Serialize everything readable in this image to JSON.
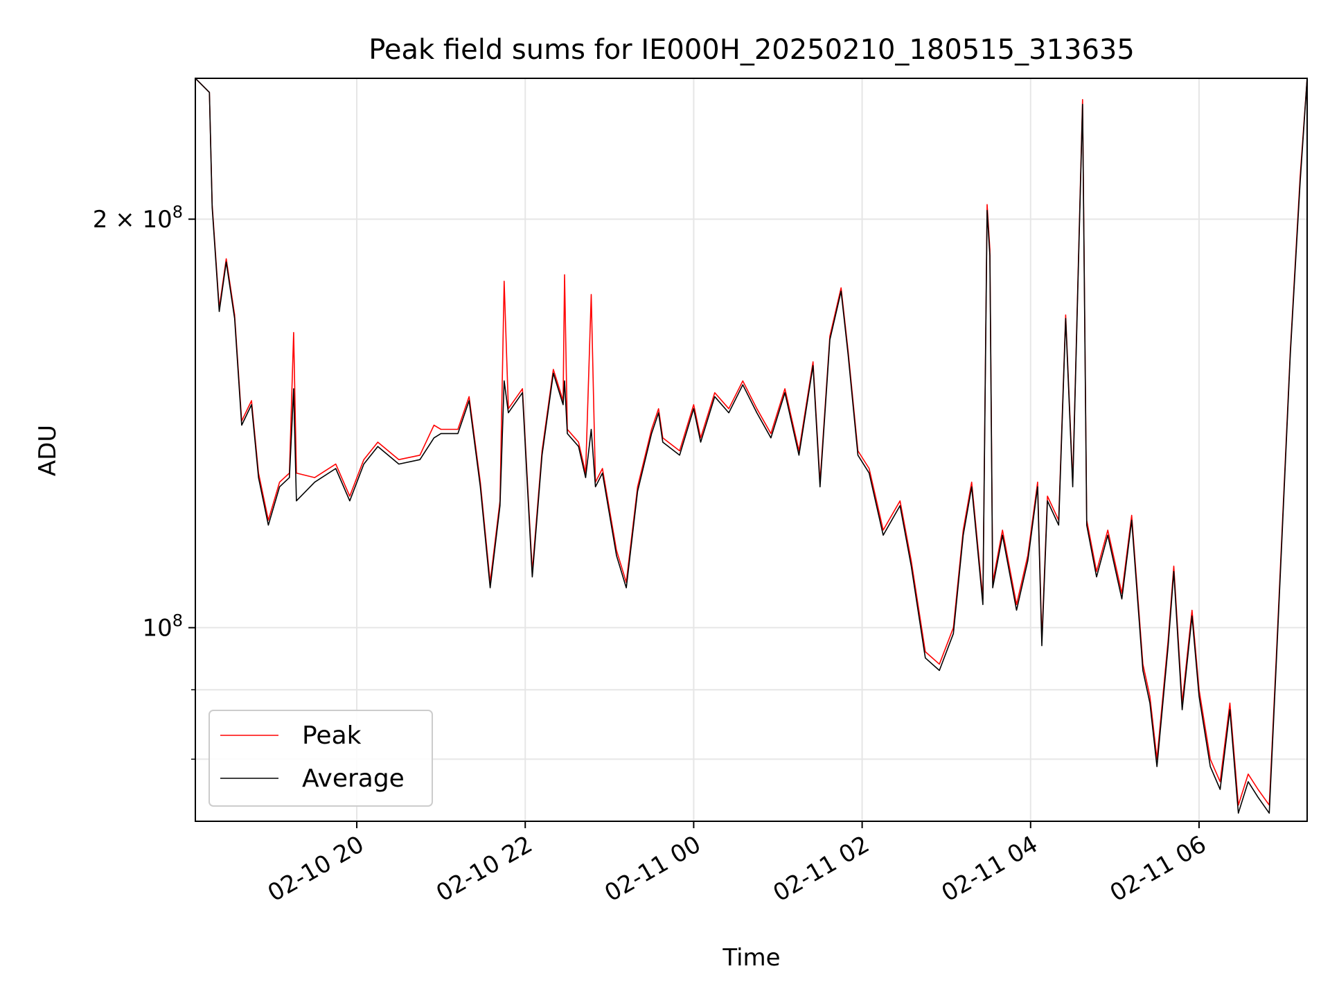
{
  "chart_data": {
    "type": "line",
    "title": "Peak field sums for IE000H_20250210_180515_313635",
    "xlabel": "Time",
    "ylabel": "ADU",
    "x_range_hours": [
      "02-10 18:05",
      "02-11 07:17"
    ],
    "ylim": [
      72000000,
      254000000
    ],
    "yscale": "log",
    "grid": true,
    "legend_position": "lower-left",
    "x_ticks": [
      {
        "label": "02-10 20",
        "time": "02-10 20:00"
      },
      {
        "label": "02-10 22",
        "time": "02-10 22:00"
      },
      {
        "label": "02-11 00",
        "time": "02-11 00:00"
      },
      {
        "label": "02-11 02",
        "time": "02-11 02:00"
      },
      {
        "label": "02-11 04",
        "time": "02-11 04:00"
      },
      {
        "label": "02-11 06",
        "time": "02-11 06:00"
      }
    ],
    "y_ticks": [
      {
        "label": "2 × 10⁸",
        "value": 200000000,
        "base": "2 × 10",
        "exp": "8"
      },
      {
        "label": "10⁸",
        "value": 100000000,
        "base": "10",
        "exp": "8"
      }
    ],
    "y_minor_ticks": [
      80000000,
      90000000
    ],
    "series": [
      {
        "name": "Peak",
        "color": "#ff0000",
        "points": [
          [
            "02-10 18:05",
            254000000
          ],
          [
            "02-10 18:15",
            248000000
          ],
          [
            "02-10 18:17",
            205000000
          ],
          [
            "02-10 18:22",
            172000000
          ],
          [
            "02-10 18:27",
            187000000
          ],
          [
            "02-10 18:33",
            170000000
          ],
          [
            "02-10 18:38",
            142000000
          ],
          [
            "02-10 18:45",
            147000000
          ],
          [
            "02-10 18:50",
            130000000
          ],
          [
            "02-10 18:57",
            120000000
          ],
          [
            "02-10 19:05",
            128000000
          ],
          [
            "02-10 19:12",
            130000000
          ],
          [
            "02-10 19:15",
            165000000
          ],
          [
            "02-10 19:17",
            130000000
          ],
          [
            "02-10 19:30",
            129000000
          ],
          [
            "02-10 19:45",
            132000000
          ],
          [
            "02-10 19:55",
            125000000
          ],
          [
            "02-10 20:05",
            133000000
          ],
          [
            "02-10 20:15",
            137000000
          ],
          [
            "02-10 20:30",
            133000000
          ],
          [
            "02-10 20:45",
            134000000
          ],
          [
            "02-10 20:55",
            141000000
          ],
          [
            "02-10 21:00",
            140000000
          ],
          [
            "02-10 21:12",
            140000000
          ],
          [
            "02-10 21:20",
            148000000
          ],
          [
            "02-10 21:28",
            128000000
          ],
          [
            "02-10 21:35",
            108000000
          ],
          [
            "02-10 21:42",
            124000000
          ],
          [
            "02-10 21:45",
            180000000
          ],
          [
            "02-10 21:48",
            145000000
          ],
          [
            "02-10 21:58",
            150000000
          ],
          [
            "02-10 22:05",
            110000000
          ],
          [
            "02-10 22:12",
            135000000
          ],
          [
            "02-10 22:20",
            155000000
          ],
          [
            "02-10 22:27",
            147000000
          ],
          [
            "02-10 22:28",
            182000000
          ],
          [
            "02-10 22:30",
            140000000
          ],
          [
            "02-10 22:38",
            137000000
          ],
          [
            "02-10 22:43",
            130000000
          ],
          [
            "02-10 22:47",
            176000000
          ],
          [
            "02-10 22:50",
            128000000
          ],
          [
            "02-10 22:55",
            131000000
          ],
          [
            "02-10 23:05",
            114000000
          ],
          [
            "02-10 23:12",
            108000000
          ],
          [
            "02-10 23:20",
            127000000
          ],
          [
            "02-10 23:30",
            140000000
          ],
          [
            "02-10 23:35",
            145000000
          ],
          [
            "02-10 23:38",
            138000000
          ],
          [
            "02-10 23:50",
            135000000
          ],
          [
            "02-11 00:00",
            146000000
          ],
          [
            "02-11 00:05",
            138000000
          ],
          [
            "02-11 00:15",
            149000000
          ],
          [
            "02-11 00:25",
            145000000
          ],
          [
            "02-11 00:35",
            152000000
          ],
          [
            "02-11 00:45",
            145000000
          ],
          [
            "02-11 00:55",
            139000000
          ],
          [
            "02-11 01:05",
            150000000
          ],
          [
            "02-11 01:15",
            135000000
          ],
          [
            "02-11 01:25",
            157000000
          ],
          [
            "02-11 01:30",
            128000000
          ],
          [
            "02-11 01:37",
            164000000
          ],
          [
            "02-11 01:45",
            178000000
          ],
          [
            "02-11 01:50",
            160000000
          ],
          [
            "02-11 01:57",
            135000000
          ],
          [
            "02-11 02:05",
            131000000
          ],
          [
            "02-11 02:15",
            118000000
          ],
          [
            "02-11 02:27",
            124000000
          ],
          [
            "02-11 02:35",
            112000000
          ],
          [
            "02-11 02:45",
            96000000
          ],
          [
            "02-11 02:55",
            94000000
          ],
          [
            "02-11 03:05",
            100000000
          ],
          [
            "02-11 03:12",
            118000000
          ],
          [
            "02-11 03:18",
            128000000
          ],
          [
            "02-11 03:22",
            116000000
          ],
          [
            "02-11 03:26",
            105000000
          ],
          [
            "02-11 03:29",
            205000000
          ],
          [
            "02-11 03:31",
            190000000
          ],
          [
            "02-11 03:33",
            108000000
          ],
          [
            "02-11 03:40",
            118000000
          ],
          [
            "02-11 03:50",
            104000000
          ],
          [
            "02-11 03:58",
            113000000
          ],
          [
            "02-11 04:05",
            128000000
          ],
          [
            "02-11 04:08",
            98000000
          ],
          [
            "02-11 04:12",
            125000000
          ],
          [
            "02-11 04:20",
            120000000
          ],
          [
            "02-11 04:25",
            170000000
          ],
          [
            "02-11 04:30",
            128000000
          ],
          [
            "02-11 04:37",
            245000000
          ],
          [
            "02-11 04:40",
            120000000
          ],
          [
            "02-11 04:47",
            110000000
          ],
          [
            "02-11 04:55",
            118000000
          ],
          [
            "02-11 05:05",
            106000000
          ],
          [
            "02-11 05:12",
            121000000
          ],
          [
            "02-11 05:20",
            94000000
          ],
          [
            "02-11 05:25",
            89000000
          ],
          [
            "02-11 05:30",
            80000000
          ],
          [
            "02-11 05:38",
            98000000
          ],
          [
            "02-11 05:42",
            111000000
          ],
          [
            "02-11 05:48",
            88000000
          ],
          [
            "02-11 05:55",
            103000000
          ],
          [
            "02-11 06:00",
            90000000
          ],
          [
            "02-11 06:08",
            80000000
          ],
          [
            "02-11 06:15",
            77000000
          ],
          [
            "02-11 06:22",
            88000000
          ],
          [
            "02-11 06:28",
            74000000
          ],
          [
            "02-11 06:35",
            78000000
          ],
          [
            "02-11 06:42",
            76000000
          ],
          [
            "02-11 06:50",
            74000000
          ],
          [
            "02-11 06:55",
            95000000
          ],
          [
            "02-11 07:05",
            160000000
          ],
          [
            "02-11 07:12",
            215000000
          ],
          [
            "02-11 07:17",
            254000000
          ]
        ]
      },
      {
        "name": "Average",
        "color": "#000000",
        "points": [
          [
            "02-10 18:05",
            254000000
          ],
          [
            "02-10 18:15",
            248000000
          ],
          [
            "02-10 18:17",
            204000000
          ],
          [
            "02-10 18:22",
            171000000
          ],
          [
            "02-10 18:27",
            186000000
          ],
          [
            "02-10 18:33",
            169000000
          ],
          [
            "02-10 18:38",
            141000000
          ],
          [
            "02-10 18:45",
            146000000
          ],
          [
            "02-10 18:50",
            129000000
          ],
          [
            "02-10 18:57",
            119000000
          ],
          [
            "02-10 19:05",
            127000000
          ],
          [
            "02-10 19:12",
            129000000
          ],
          [
            "02-10 19:15",
            150000000
          ],
          [
            "02-10 19:17",
            124000000
          ],
          [
            "02-10 19:30",
            128000000
          ],
          [
            "02-10 19:45",
            131000000
          ],
          [
            "02-10 19:55",
            124000000
          ],
          [
            "02-10 20:05",
            132000000
          ],
          [
            "02-10 20:15",
            136000000
          ],
          [
            "02-10 20:30",
            132000000
          ],
          [
            "02-10 20:45",
            133000000
          ],
          [
            "02-10 20:55",
            138000000
          ],
          [
            "02-10 21:00",
            139000000
          ],
          [
            "02-10 21:12",
            139000000
          ],
          [
            "02-10 21:20",
            147000000
          ],
          [
            "02-10 21:28",
            127000000
          ],
          [
            "02-10 21:35",
            107000000
          ],
          [
            "02-10 21:42",
            123000000
          ],
          [
            "02-10 21:45",
            152000000
          ],
          [
            "02-10 21:48",
            144000000
          ],
          [
            "02-10 21:58",
            149000000
          ],
          [
            "02-10 22:05",
            109000000
          ],
          [
            "02-10 22:12",
            134000000
          ],
          [
            "02-10 22:20",
            154000000
          ],
          [
            "02-10 22:27",
            146000000
          ],
          [
            "02-10 22:28",
            152000000
          ],
          [
            "02-10 22:30",
            139000000
          ],
          [
            "02-10 22:38",
            136000000
          ],
          [
            "02-10 22:43",
            129000000
          ],
          [
            "02-10 22:47",
            140000000
          ],
          [
            "02-10 22:50",
            127000000
          ],
          [
            "02-10 22:55",
            130000000
          ],
          [
            "02-10 23:05",
            113000000
          ],
          [
            "02-10 23:12",
            107000000
          ],
          [
            "02-10 23:20",
            126000000
          ],
          [
            "02-10 23:30",
            139000000
          ],
          [
            "02-10 23:35",
            144000000
          ],
          [
            "02-10 23:38",
            137000000
          ],
          [
            "02-10 23:50",
            134000000
          ],
          [
            "02-11 00:00",
            145000000
          ],
          [
            "02-11 00:05",
            137000000
          ],
          [
            "02-11 00:15",
            148000000
          ],
          [
            "02-11 00:25",
            144000000
          ],
          [
            "02-11 00:35",
            151000000
          ],
          [
            "02-11 00:45",
            144000000
          ],
          [
            "02-11 00:55",
            138000000
          ],
          [
            "02-11 01:05",
            149000000
          ],
          [
            "02-11 01:15",
            134000000
          ],
          [
            "02-11 01:25",
            156000000
          ],
          [
            "02-11 01:30",
            127000000
          ],
          [
            "02-11 01:37",
            163000000
          ],
          [
            "02-11 01:45",
            177000000
          ],
          [
            "02-11 01:50",
            159000000
          ],
          [
            "02-11 01:57",
            134000000
          ],
          [
            "02-11 02:05",
            130000000
          ],
          [
            "02-11 02:15",
            117000000
          ],
          [
            "02-11 02:27",
            123000000
          ],
          [
            "02-11 02:35",
            111000000
          ],
          [
            "02-11 02:45",
            95000000
          ],
          [
            "02-11 02:55",
            93000000
          ],
          [
            "02-11 03:05",
            99000000
          ],
          [
            "02-11 03:12",
            117000000
          ],
          [
            "02-11 03:18",
            127000000
          ],
          [
            "02-11 03:22",
            115000000
          ],
          [
            "02-11 03:26",
            104000000
          ],
          [
            "02-11 03:29",
            203000000
          ],
          [
            "02-11 03:31",
            188000000
          ],
          [
            "02-11 03:33",
            107000000
          ],
          [
            "02-11 03:40",
            117000000
          ],
          [
            "02-11 03:50",
            103000000
          ],
          [
            "02-11 03:58",
            112000000
          ],
          [
            "02-11 04:05",
            127000000
          ],
          [
            "02-11 04:08",
            97000000
          ],
          [
            "02-11 04:12",
            124000000
          ],
          [
            "02-11 04:20",
            119000000
          ],
          [
            "02-11 04:25",
            169000000
          ],
          [
            "02-11 04:30",
            127000000
          ],
          [
            "02-11 04:37",
            243000000
          ],
          [
            "02-11 04:40",
            119000000
          ],
          [
            "02-11 04:47",
            109000000
          ],
          [
            "02-11 04:55",
            117000000
          ],
          [
            "02-11 05:05",
            105000000
          ],
          [
            "02-11 05:12",
            120000000
          ],
          [
            "02-11 05:20",
            93000000
          ],
          [
            "02-11 05:25",
            88000000
          ],
          [
            "02-11 05:30",
            79000000
          ],
          [
            "02-11 05:38",
            97000000
          ],
          [
            "02-11 05:42",
            110000000
          ],
          [
            "02-11 05:48",
            87000000
          ],
          [
            "02-11 05:55",
            102000000
          ],
          [
            "02-11 06:00",
            89000000
          ],
          [
            "02-11 06:08",
            79000000
          ],
          [
            "02-11 06:15",
            76000000
          ],
          [
            "02-11 06:22",
            87000000
          ],
          [
            "02-11 06:28",
            73000000
          ],
          [
            "02-11 06:35",
            77000000
          ],
          [
            "02-11 06:42",
            75000000
          ],
          [
            "02-11 06:50",
            73000000
          ],
          [
            "02-11 06:55",
            94000000
          ],
          [
            "02-11 07:05",
            159000000
          ],
          [
            "02-11 07:12",
            213000000
          ],
          [
            "02-11 07:17",
            254000000
          ]
        ]
      }
    ]
  }
}
